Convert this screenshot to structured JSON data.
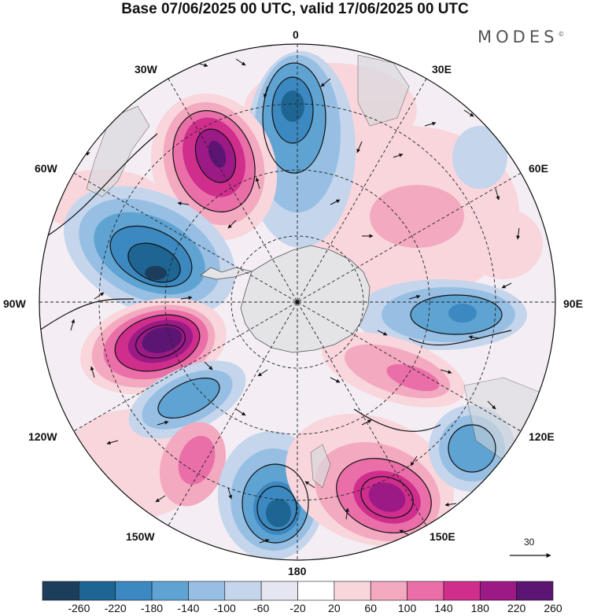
{
  "title": "Base 07/06/2025 00 UTC, valid 17/06/2025 00 UTC",
  "brand": "MODES",
  "brand_mark": "©",
  "longitude_labels": {
    "top": "0",
    "top_right": "30E",
    "right_upper": "60E",
    "right": "90E",
    "right_lower": "120E",
    "bottom_right": "150E",
    "bottom": "180",
    "bottom_left": "150W",
    "left_lower": "120W",
    "left": "90W",
    "left_upper": "60W",
    "top_left": "30W"
  },
  "reference_vector": {
    "value": "30"
  },
  "colorbar": {
    "colors": [
      "#1c3e5c",
      "#1f6593",
      "#3c88c0",
      "#5fa3d2",
      "#96bfe3",
      "#c4d5ec",
      "#e6e6f2",
      "#ffffff",
      "#f8d6dc",
      "#f3a9c0",
      "#ea6fa8",
      "#cf2e8d",
      "#9c1a86",
      "#5d1574"
    ],
    "tick_labels": [
      "-260",
      "-220",
      "-180",
      "-140",
      "-100",
      "-60",
      "-20",
      "20",
      "60",
      "100",
      "140",
      "180",
      "220",
      "260"
    ]
  },
  "map": {
    "colors": {
      "ocean_neutral": "#ffffff",
      "land": "#e4e4e6",
      "grid": "#222222",
      "contour": "#111111"
    },
    "features": [
      {
        "sign": "neg",
        "level": 5,
        "label": "trough-0-meridian"
      },
      {
        "sign": "pos",
        "level": 6,
        "label": "ridge-30w"
      },
      {
        "sign": "neg",
        "level": 5,
        "label": "trough-70w"
      },
      {
        "sign": "pos",
        "level": 6,
        "label": "ridge-100w"
      },
      {
        "sign": "neg",
        "level": 3,
        "label": "trough-120w"
      },
      {
        "sign": "pos",
        "level": 2,
        "label": "ridge-140w"
      },
      {
        "sign": "neg",
        "level": 4,
        "label": "trough-165w"
      },
      {
        "sign": "pos",
        "level": 4,
        "label": "ridge-155e"
      },
      {
        "sign": "neg",
        "level": 3,
        "label": "trough-125e"
      },
      {
        "sign": "neg",
        "level": 3,
        "label": "trough-90e"
      },
      {
        "sign": "pos",
        "level": 2,
        "label": "ridge-110e"
      },
      {
        "sign": "pos",
        "level": 1,
        "label": "ridge-50e"
      }
    ]
  }
}
